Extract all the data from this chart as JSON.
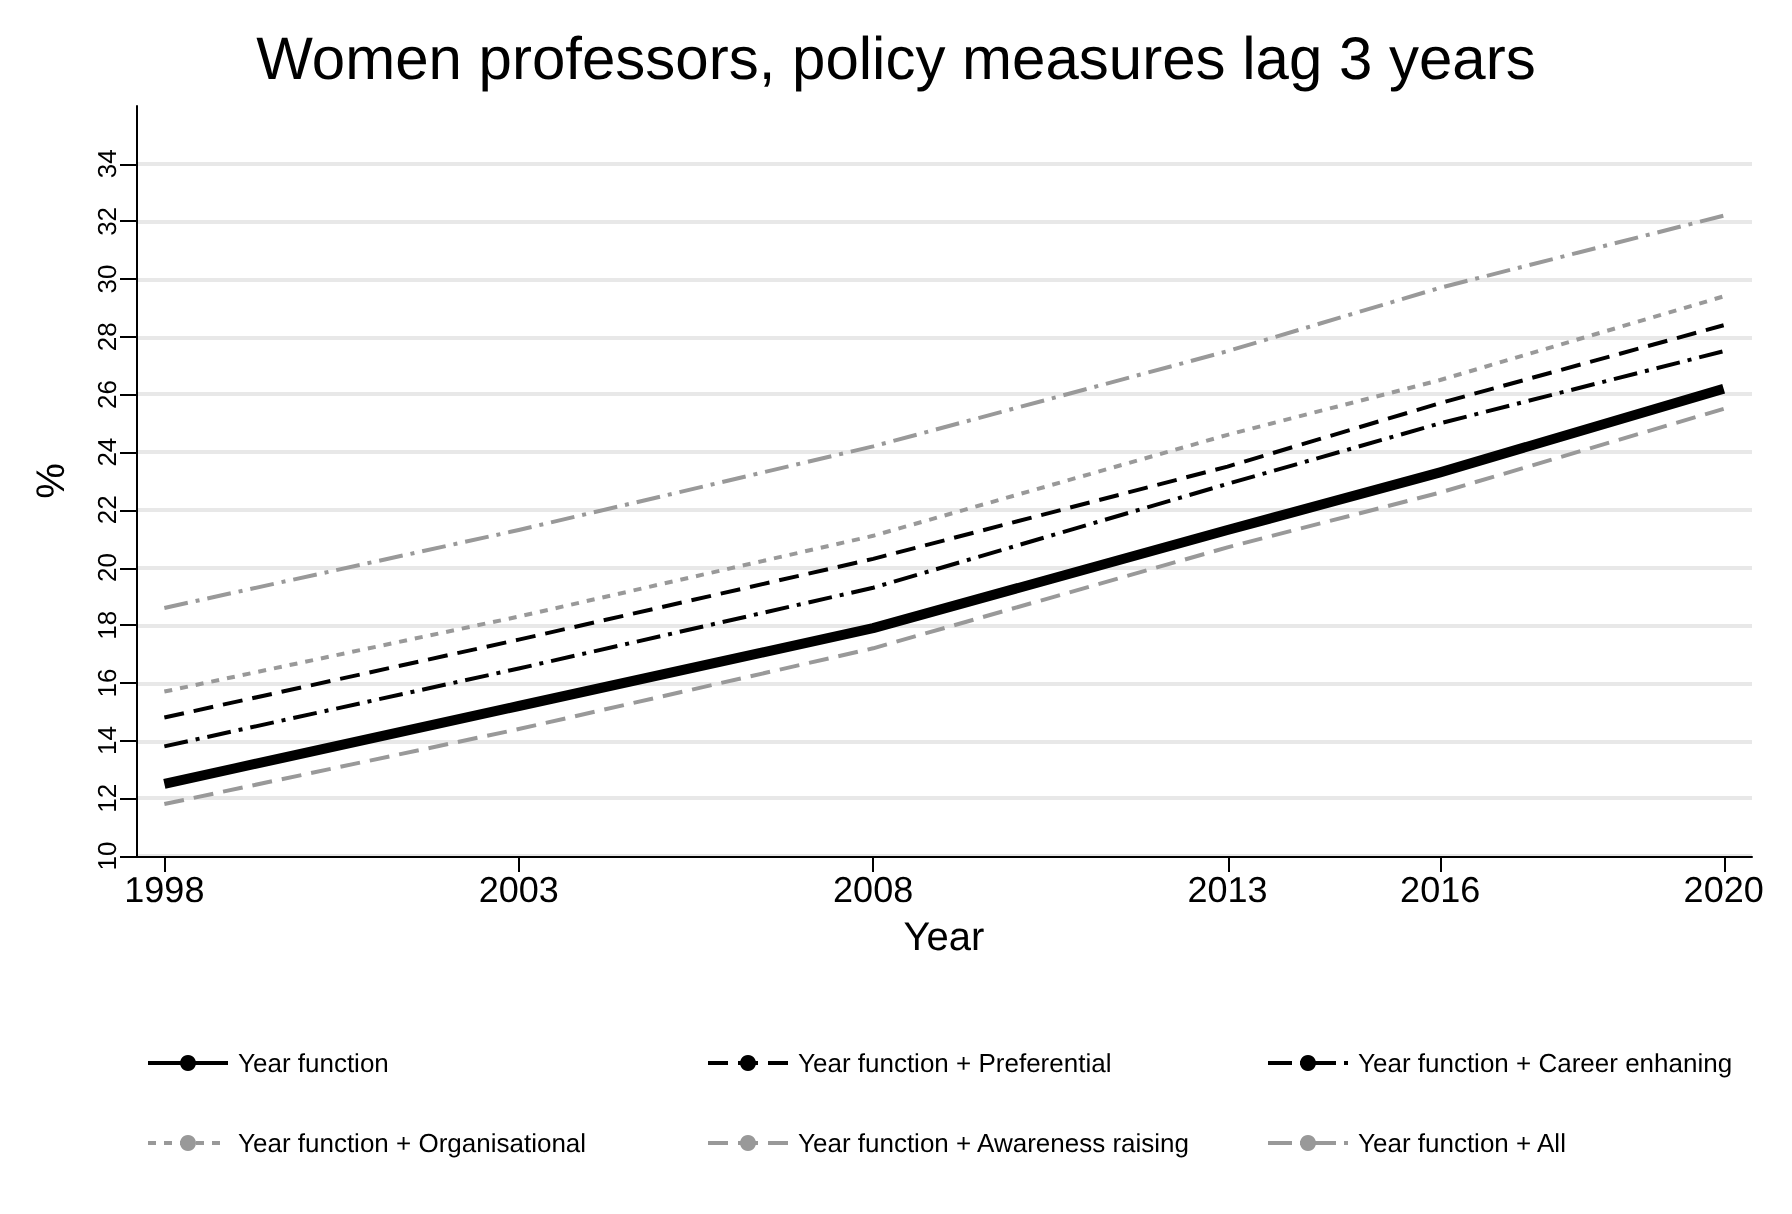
{
  "chart_data": {
    "type": "line",
    "title": "Women professors, policy measures lag 3 years",
    "xlabel": "Year",
    "ylabel": "%",
    "x": [
      1998,
      2003,
      2008,
      2013,
      2016,
      2020
    ],
    "series": [
      {
        "name": "Year function",
        "color": "#000000",
        "line_style": "solid",
        "values": [
          12.5,
          15.2,
          17.9,
          21.3,
          23.3,
          26.2
        ]
      },
      {
        "name": "Year function + Preferential",
        "color": "#000000",
        "line_style": "dashed",
        "values": [
          14.8,
          17.5,
          20.3,
          23.5,
          25.7,
          28.4
        ]
      },
      {
        "name": "Year function + Career enhaning",
        "color": "#000000",
        "line_style": "dashdot",
        "values": [
          13.8,
          16.5,
          19.3,
          22.9,
          25.0,
          27.5
        ]
      },
      {
        "name": "Year function + Organisational",
        "color": "#999999",
        "line_style": "dotted",
        "values": [
          15.7,
          18.3,
          21.1,
          24.6,
          26.5,
          29.4
        ]
      },
      {
        "name": "Year function + Awareness raising",
        "color": "#999999",
        "line_style": "dashed",
        "values": [
          11.8,
          14.4,
          17.2,
          20.7,
          22.6,
          25.5
        ]
      },
      {
        "name": "Year function + All",
        "color": "#999999",
        "line_style": "dashdot",
        "values": [
          18.6,
          21.3,
          24.2,
          27.5,
          29.7,
          32.2
        ]
      }
    ],
    "xlim": [
      1997.6,
      2020.4
    ],
    "xticks": [
      1998,
      2003,
      2008,
      2013,
      2016,
      2020
    ],
    "ylim": [
      10,
      36
    ],
    "yticks": [
      10,
      12,
      14,
      16,
      18,
      20,
      22,
      24,
      26,
      28,
      30,
      32,
      34
    ],
    "grid": "y",
    "legend": "bottom",
    "marker": "none"
  }
}
